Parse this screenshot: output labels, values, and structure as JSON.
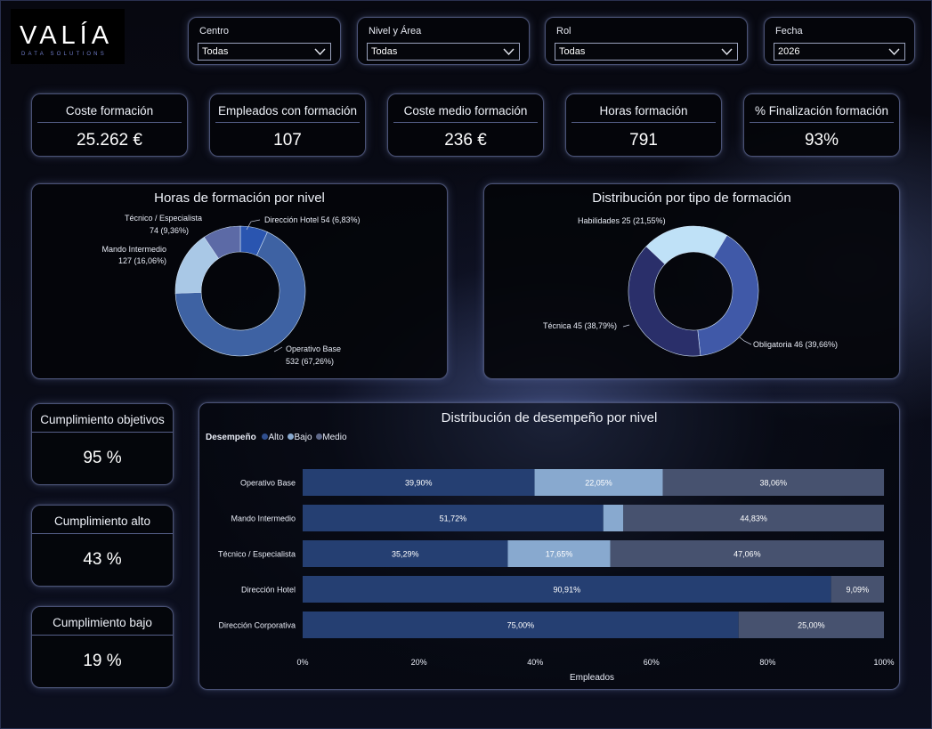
{
  "logo": {
    "wordmark": "VALÍA",
    "tagline": "DATA SOLUTIONS"
  },
  "filters": [
    {
      "label": "Centro",
      "value": "Todas"
    },
    {
      "label": "Nivel y Área",
      "value": "Todas"
    },
    {
      "label": "Rol",
      "value": "Todas"
    },
    {
      "label": "Fecha",
      "value": "2026"
    }
  ],
  "kpis": [
    {
      "title": "Coste formación",
      "value": "25.262 €"
    },
    {
      "title": "Empleados con formación",
      "value": "107"
    },
    {
      "title": "Coste medio formación",
      "value": "236 €"
    },
    {
      "title": "Horas formación",
      "value": "791"
    },
    {
      "title": "% Finalización formación",
      "value": "93%"
    }
  ],
  "side_kpis": [
    {
      "title": "Cumplimiento objetivos",
      "value": "95 %"
    },
    {
      "title": "Cumplimiento alto",
      "value": "43 %"
    },
    {
      "title": "Cumplimiento bajo",
      "value": "19 %"
    }
  ],
  "colors": {
    "accent_dark": "#2c4a86",
    "accent_mid": "#3e62a3",
    "accent_light": "#a9c8e6",
    "alto": "#253f72",
    "bajo": "#88a9cf",
    "medio": "#47526f"
  },
  "chart_data": [
    {
      "type": "pie",
      "title": "Horas de formación por nivel",
      "slices": [
        {
          "label": "Dirección Hotel",
          "value": 54,
          "percent": "6,83%",
          "value_label": "Dirección Hotel 54 (6,83%)",
          "color": "#2a55b0"
        },
        {
          "label": "Operativo Base",
          "value": 532,
          "percent": "67,26%",
          "value_label": "532 (67,26%)",
          "color": "#3e62a3"
        },
        {
          "label": "Mando Intermedio",
          "value": 127,
          "percent": "16,06%",
          "value_label": "127 (16,06%)",
          "color": "#a9c8e6"
        },
        {
          "label": "Técnico / Especialista",
          "value": 74,
          "percent": "9,36%",
          "value_label": "74 (9,36%)",
          "color": "#5c6aa6"
        }
      ]
    },
    {
      "type": "pie",
      "title": "Distribución por tipo de formación",
      "slices": [
        {
          "label": "Obligatoria",
          "value": 46,
          "percent": "39,66%",
          "value_label": "Obligatoria 46 (39,66%)",
          "color": "#4059a8"
        },
        {
          "label": "Técnica",
          "value": 45,
          "percent": "38,79%",
          "value_label": "Técnica 45 (38,79%)",
          "color": "#2a2f6a"
        },
        {
          "label": "Habilidades",
          "value": 25,
          "percent": "21,55%",
          "value_label": "Habilidades 25 (21,55%)",
          "color": "#bfe1f7"
        }
      ]
    },
    {
      "type": "bar",
      "orientation": "horizontal",
      "stacked": "100%",
      "title": "Distribución de desempeño por nivel",
      "legend_title": "Desempeño",
      "legend_placement": "top-left",
      "xlabel": "Empleados",
      "categories": [
        "Operativo Base",
        "Mando Intermedio",
        "Técnico / Especialista",
        "Dirección Hotel",
        "Dirección Corporativa"
      ],
      "series": [
        {
          "name": "Alto",
          "color": "#253f72",
          "values": [
            39.9,
            51.72,
            35.29,
            90.91,
            75.0
          ],
          "labels": [
            "39,90%",
            "51,72%",
            "35,29%",
            "90,91%",
            "75,00%"
          ]
        },
        {
          "name": "Bajo",
          "color": "#88a9cf",
          "values": [
            22.05,
            3.45,
            17.65,
            0,
            0
          ],
          "labels": [
            "22,05%",
            "",
            "17,65%",
            "",
            ""
          ]
        },
        {
          "name": "Medio",
          "color": "#47526f",
          "values": [
            38.06,
            44.83,
            47.06,
            9.09,
            25.0
          ],
          "labels": [
            "38,06%",
            "44,83%",
            "47,06%",
            "9,09%",
            "25,00%"
          ]
        }
      ],
      "xlim": [
        0,
        100
      ],
      "xticks": [
        "0%",
        "20%",
        "40%",
        "60%",
        "80%",
        "100%"
      ]
    }
  ]
}
